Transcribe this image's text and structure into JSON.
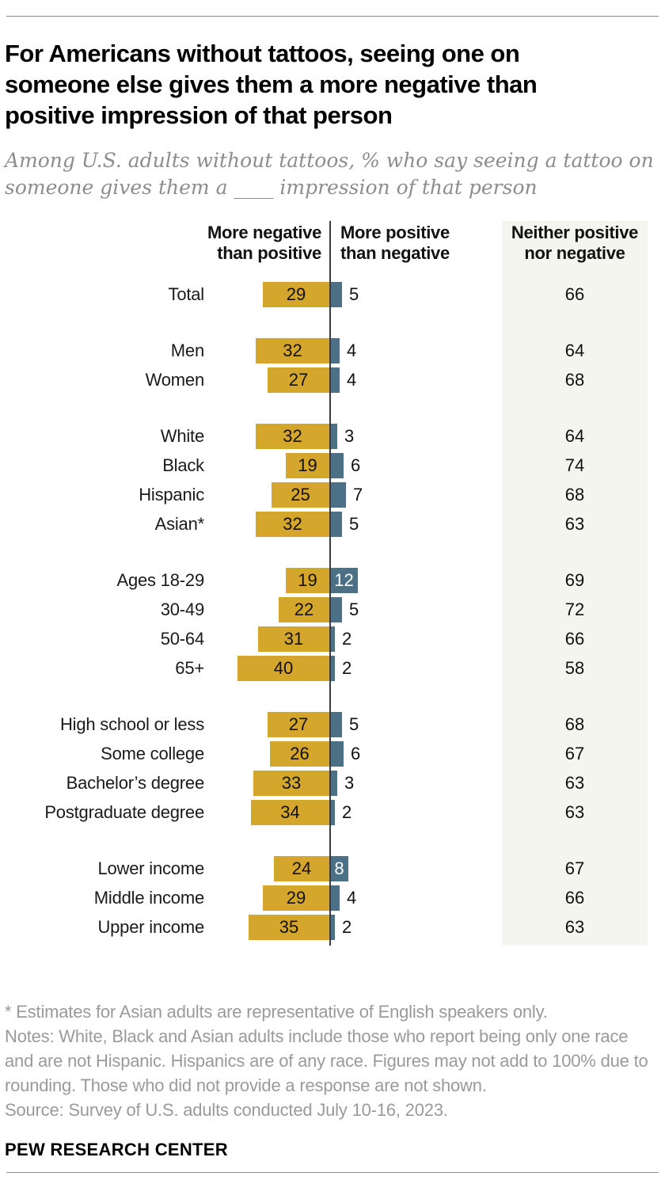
{
  "header": {
    "title_lines": [
      "For Americans without tattoos, seeing one on",
      "someone else gives them a more negative than",
      "positive impression of that person"
    ],
    "subtitle_lines": [
      "Among U.S. adults without tattoos, % who say seeing a tattoo on",
      "someone gives them a ____ impression of that person"
    ]
  },
  "chart_data": {
    "type": "bar",
    "orientation": "diverging-horizontal",
    "unit": "percent",
    "legend_position": "column-headers",
    "grid": false,
    "columns": {
      "negative": {
        "line1": "More negative",
        "line2": "than positive"
      },
      "positive": {
        "line1": "More positive",
        "line2": "than negative"
      },
      "neither": {
        "line1": "Neither positive",
        "line2": "nor negative"
      }
    },
    "series_names": [
      "More negative than positive",
      "More positive than negative",
      "Neither positive nor negative"
    ],
    "colors": {
      "negative_bar": "#d4a62b",
      "positive_bar": "#4c7186",
      "neither_column_bg": "#f5f5ef",
      "axis_line": "#3d3d3d"
    },
    "groups": [
      {
        "rows": [
          {
            "label": "Total",
            "negative": 29,
            "positive": 5,
            "neither": 66
          }
        ]
      },
      {
        "rows": [
          {
            "label": "Men",
            "negative": 32,
            "positive": 4,
            "neither": 64
          },
          {
            "label": "Women",
            "negative": 27,
            "positive": 4,
            "neither": 68
          }
        ]
      },
      {
        "rows": [
          {
            "label": "White",
            "negative": 32,
            "positive": 3,
            "neither": 64
          },
          {
            "label": "Black",
            "negative": 19,
            "positive": 6,
            "neither": 74
          },
          {
            "label": "Hispanic",
            "negative": 25,
            "positive": 7,
            "neither": 68
          },
          {
            "label": "Asian*",
            "negative": 32,
            "positive": 5,
            "neither": 63
          }
        ]
      },
      {
        "rows": [
          {
            "label": "Ages 18-29",
            "negative": 19,
            "positive": 12,
            "neither": 69
          },
          {
            "label": "30-49",
            "negative": 22,
            "positive": 5,
            "neither": 72
          },
          {
            "label": "50-64",
            "negative": 31,
            "positive": 2,
            "neither": 66
          },
          {
            "label": "65+",
            "negative": 40,
            "positive": 2,
            "neither": 58
          }
        ]
      },
      {
        "rows": [
          {
            "label": "High school or less",
            "negative": 27,
            "positive": 5,
            "neither": 68
          },
          {
            "label": "Some college",
            "negative": 26,
            "positive": 6,
            "neither": 67
          },
          {
            "label": "Bachelor’s degree",
            "negative": 33,
            "positive": 3,
            "neither": 63
          },
          {
            "label": "Postgraduate degree",
            "negative": 34,
            "positive": 2,
            "neither": 63
          }
        ]
      },
      {
        "rows": [
          {
            "label": "Lower income",
            "negative": 24,
            "positive": 8,
            "neither": 67
          },
          {
            "label": "Middle income",
            "negative": 29,
            "positive": 4,
            "neither": 66
          },
          {
            "label": "Upper income",
            "negative": 35,
            "positive": 2,
            "neither": 63
          }
        ]
      }
    ]
  },
  "footer": {
    "footnote": "* Estimates for Asian adults are representative of English speakers only.",
    "notes": "Notes: White, Black and Asian adults include those who report being only one race and are not Hispanic. Hispanics are of any race. Figures may not add to 100% due to rounding. Those who did not provide a response are not shown.",
    "source": "Source: Survey of U.S. adults conducted July 10-16, 2023.",
    "brand": "PEW RESEARCH CENTER"
  }
}
